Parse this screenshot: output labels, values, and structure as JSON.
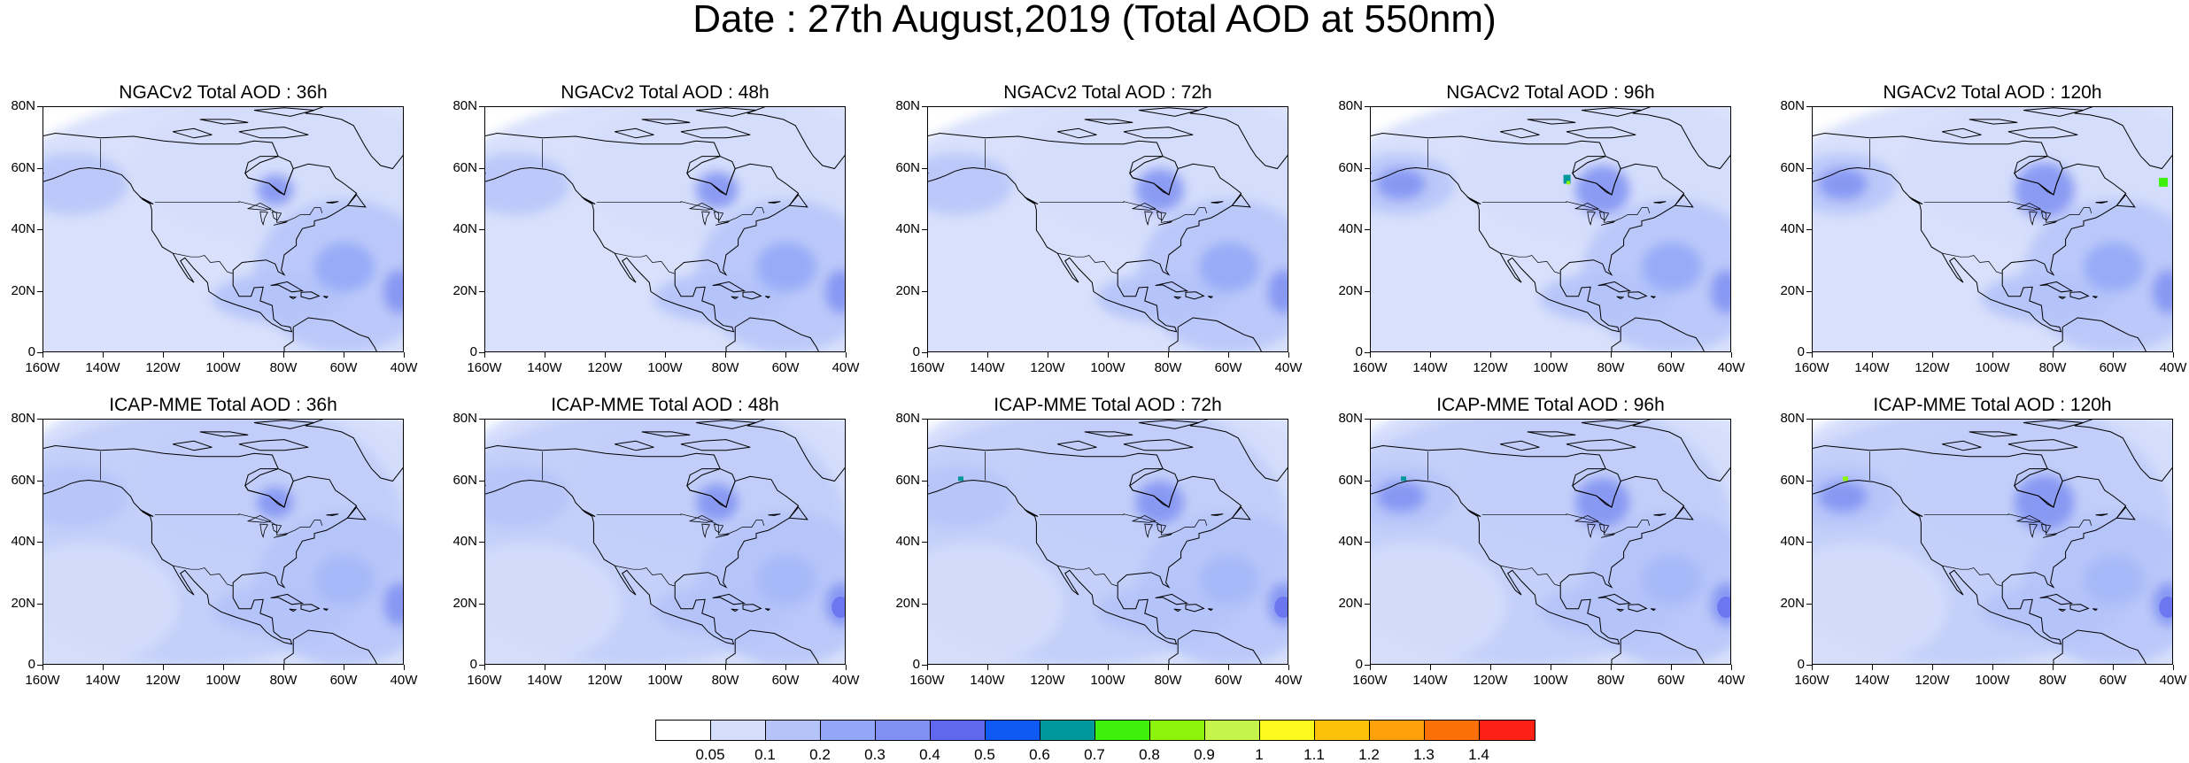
{
  "title": "Date : 27th August,2019 (Total AOD at 550nm)",
  "axes": {
    "y_ticks": [
      "80N",
      "60N",
      "40N",
      "20N",
      "0"
    ],
    "x_ticks": [
      "160W",
      "140W",
      "120W",
      "100W",
      "80W",
      "60W",
      "40W"
    ]
  },
  "panels": [
    {
      "title": "NGACv2 Total AOD : 36h",
      "model": "NGACv2",
      "lead": "36h"
    },
    {
      "title": "NGACv2 Total AOD : 48h",
      "model": "NGACv2",
      "lead": "48h"
    },
    {
      "title": "NGACv2 Total AOD : 72h",
      "model": "NGACv2",
      "lead": "72h"
    },
    {
      "title": "NGACv2 Total AOD : 96h",
      "model": "NGACv2",
      "lead": "96h"
    },
    {
      "title": "NGACv2 Total AOD : 120h",
      "model": "NGACv2",
      "lead": "120h"
    },
    {
      "title": "ICAP-MME Total AOD : 36h",
      "model": "ICAP-MME",
      "lead": "36h"
    },
    {
      "title": "ICAP-MME Total AOD : 48h",
      "model": "ICAP-MME",
      "lead": "48h"
    },
    {
      "title": "ICAP-MME Total AOD : 72h",
      "model": "ICAP-MME",
      "lead": "72h"
    },
    {
      "title": "ICAP-MME Total AOD : 96h",
      "model": "ICAP-MME",
      "lead": "96h"
    },
    {
      "title": "ICAP-MME Total AOD : 120h",
      "model": "ICAP-MME",
      "lead": "120h"
    }
  ],
  "colorbar": {
    "colors": [
      "#ffffff",
      "#d4ddfb",
      "#b4c3f9",
      "#92a7f7",
      "#7f90f2",
      "#5f68ee",
      "#0f5af5",
      "#00989a",
      "#3ff00a",
      "#8cf40b",
      "#c5f54a",
      "#fcfb1d",
      "#fcc20a",
      "#fca109",
      "#fc7107",
      "#fc2015"
    ],
    "labels": [
      "0.05",
      "0.1",
      "0.2",
      "0.3",
      "0.4",
      "0.5",
      "0.6",
      "0.7",
      "0.8",
      "0.9",
      "1",
      "1.1",
      "1.2",
      "1.3",
      "1.4"
    ]
  }
}
